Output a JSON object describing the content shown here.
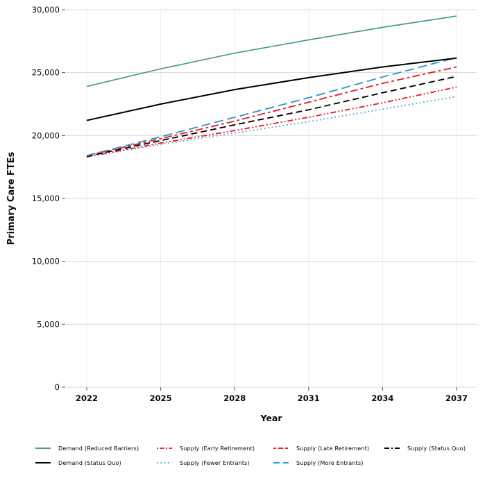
{
  "chart_data": {
    "type": "line",
    "title": "",
    "xlabel": "Year",
    "ylabel": "Primary Care FTEs",
    "x": [
      2022,
      2025,
      2028,
      2031,
      2034,
      2037
    ],
    "xtick_labels": [
      "2022",
      "2025",
      "2028",
      "2031",
      "2034",
      "2037"
    ],
    "yticks": [
      0,
      5000,
      10000,
      15000,
      20000,
      25000,
      30000
    ],
    "ytick_labels": [
      "0",
      "5,000",
      "10,000",
      "15,000",
      "20,000",
      "25,000",
      "30,000"
    ],
    "xlim": [
      2022,
      2037
    ],
    "ylim": [
      0,
      30000
    ],
    "grid": {
      "horizontal_color": "#d9d9d9",
      "vertical_color": "#ececec"
    },
    "tick_color": "#555555",
    "text_color": "#0a0a0a",
    "legend_position": "bottom",
    "series": [
      {
        "name": "Demand (Reduced Barriers)",
        "color": "#479e7b",
        "line_style": "solid",
        "dash": "",
        "legend_dash": "",
        "width": 1.7,
        "values": [
          23900,
          25300,
          26550,
          27600,
          28600,
          29500
        ]
      },
      {
        "name": "Demand (Status Quo)",
        "color": "#000000",
        "line_style": "solid",
        "dash": "",
        "legend_dash": "",
        "width": 2.0,
        "values": [
          21200,
          22500,
          23650,
          24600,
          25450,
          26150
        ]
      },
      {
        "name": "Supply (Early Retirement)",
        "color": "#e8202c",
        "line_style": "dash-dot-dot",
        "dash": "8 3 2 3 2 3",
        "legend_dash": "2 2.5 6 2.5",
        "width": 1.9,
        "values": [
          18300,
          19400,
          20400,
          21450,
          22600,
          23850
        ]
      },
      {
        "name": "Supply (Fewer Entrants)",
        "color": "#55a7d6",
        "line_style": "dotted",
        "dash": "1.8 3.6",
        "legend_dash": "1.8 3.6",
        "width": 1.9,
        "values": [
          18300,
          19300,
          20200,
          21100,
          22100,
          23100
        ]
      },
      {
        "name": "Supply (Late Retirement)",
        "color": "#e8202c",
        "line_style": "two-dash",
        "dash": "11 4 4 4",
        "legend_dash": "4 2.5 8 2.5",
        "width": 1.9,
        "values": [
          18400,
          19750,
          21150,
          22650,
          24150,
          25450
        ]
      },
      {
        "name": "Supply (More Entrants)",
        "color": "#2e96d4",
        "line_style": "long-dash",
        "dash": "13 6",
        "legend_dash": "9 5",
        "width": 1.9,
        "values": [
          18400,
          19900,
          21450,
          23000,
          24650,
          26200
        ]
      },
      {
        "name": "Supply (Status Quo)",
        "color": "#000000",
        "line_style": "dashed",
        "dash": "9 5",
        "legend_dash": "7 3 2 3",
        "width": 1.9,
        "values": [
          18350,
          19600,
          20850,
          22050,
          23400,
          24700
        ]
      }
    ]
  },
  "legend": {
    "columns": [
      [
        0,
        1
      ],
      [
        2,
        3
      ],
      [
        4,
        5
      ],
      [
        6
      ]
    ]
  }
}
